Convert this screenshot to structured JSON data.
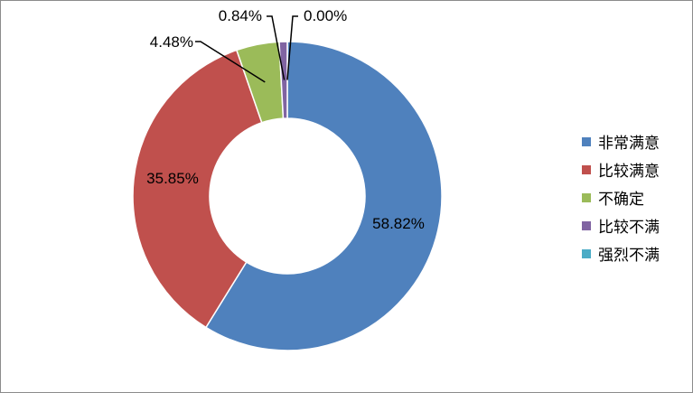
{
  "chart_data": {
    "type": "pie",
    "donut": true,
    "categories": [
      "非常满意",
      "比较满意",
      "不确定",
      "比较不满",
      "强烈不满"
    ],
    "values": [
      58.82,
      35.85,
      4.48,
      0.84,
      0.0
    ],
    "data_labels": [
      "58.82%",
      "35.85%",
      "4.48%",
      "0.84%",
      "0.00%"
    ],
    "colors": [
      "#4F81BD",
      "#C0504D",
      "#9BBB59",
      "#8064A2",
      "#4BACC6"
    ],
    "legend_position": "right",
    "start_angle": "top, clockwise"
  }
}
